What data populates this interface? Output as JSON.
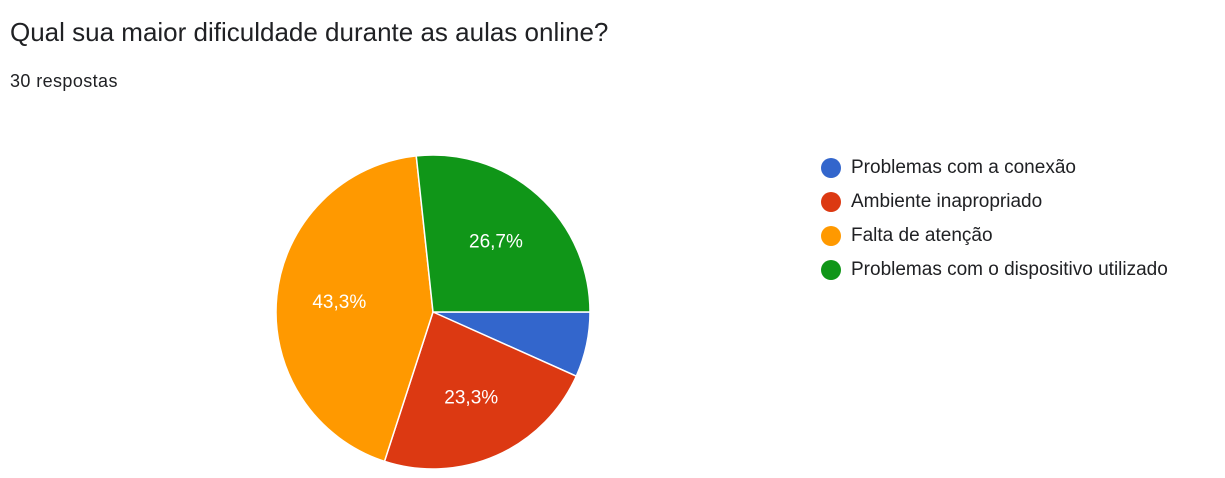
{
  "header": {
    "title": "Qual sua maior dificuldade durante as aulas online?",
    "responses": "30 respostas"
  },
  "chart_data": {
    "type": "pie",
    "title": "Qual sua maior dificuldade durante as aulas online?",
    "categories": [
      "Problemas com a conexão",
      "Ambiente inapropriado",
      "Falta de atenção",
      "Problemas com o dispositivo utilizado"
    ],
    "values": [
      6.7,
      23.3,
      43.3,
      26.7
    ],
    "labels": [
      "",
      "23,3%",
      "43,3%",
      "26,7%"
    ],
    "colors": [
      "#3366cc",
      "#dc3912",
      "#ff9900",
      "#109618"
    ],
    "legend_position": "right"
  }
}
